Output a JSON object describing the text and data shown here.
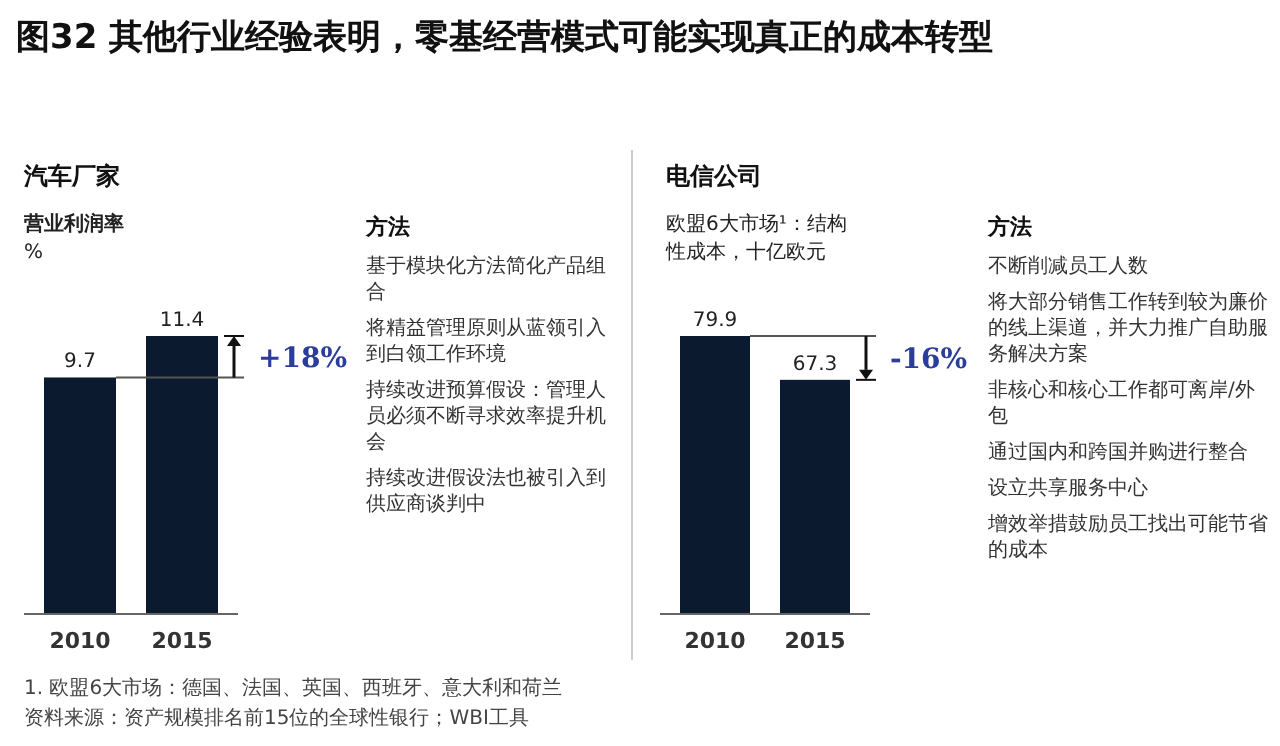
{
  "chart_data": [
    {
      "type": "bar",
      "title": "图32 其他行业经验表明，零基经营模式可能实现真正的成本转型",
      "subtitle": "汽车厂家",
      "ylabel": "营业利润率\n%",
      "categories": [
        "2010",
        "2015"
      ],
      "values": [
        9.7,
        11.4
      ],
      "color": "#0b1a2e",
      "data_labels": true,
      "annotations": [
        {
          "text": "+18%",
          "x": "2015",
          "y": 11.4
        },
        "方法",
        "基于模块化方法简化产品组合",
        "将精益管理原则从蓝领引入到白领工作环境",
        "持续改进预算假设：管理人员必须不断寻求效率提升机会",
        "持续改进假设法也被引入到供应商谈判中"
      ]
    },
    {
      "type": "bar",
      "subtitle": "电信公司",
      "ylabel": "欧盟6大市场¹：结构性成本，十亿欧元",
      "categories": [
        "2010",
        "2015"
      ],
      "values": [
        79.9,
        67.3
      ],
      "color": "#0b1a2e",
      "data_labels": true,
      "annotations": [
        {
          "text": "-16%",
          "x": "2015",
          "y": 67.3
        },
        "方法",
        "不断削减员工人数",
        "将大部分销售工作转到较为廉价的线上渠道，并大力推广自助服务解决方案",
        "非核心和核心工作都可离岸/外包",
        "通过国内和跨国并购进行整合",
        "设立共享服务中心",
        "增效举措鼓励员工找出可能节省的成本"
      ]
    },
    {
      "type": "other",
      "annotations": [
        "1. 欧盟6大市场：德国、法国、英国、西班牙、意大利和荷兰",
        "资料来源：资产规模排名前15位的全球性银行；WBI工具"
      ]
    }
  ]
}
